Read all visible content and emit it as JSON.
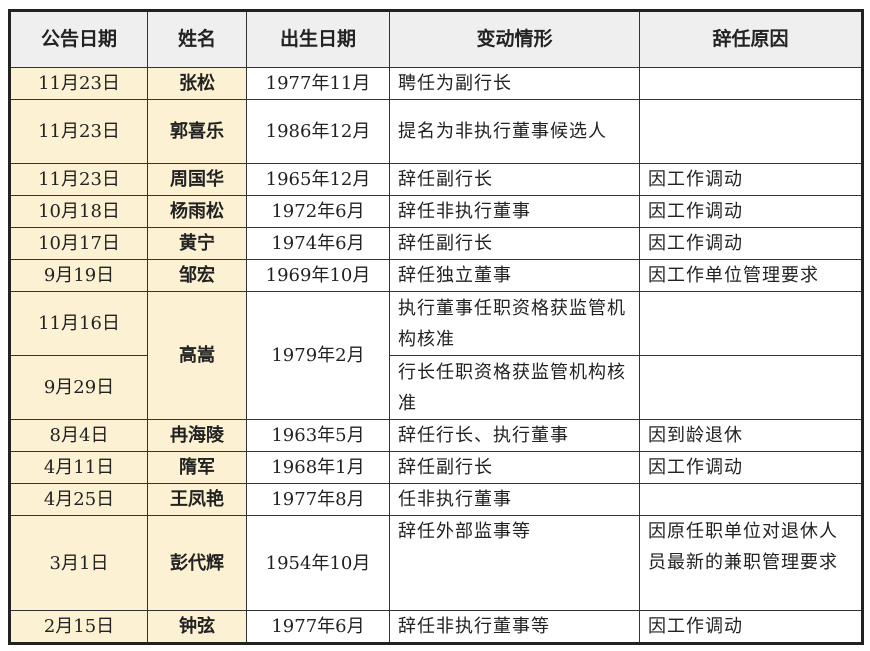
{
  "headers": [
    "公告日期",
    "姓名",
    "出生日期",
    "变动情形",
    "辞任原因"
  ],
  "rows": [
    {
      "date": "11月23日",
      "name": "张松",
      "birth": "1977年11月",
      "change": "聘任为副行长",
      "reason": ""
    },
    {
      "date": "11月23日",
      "name": "郭喜乐",
      "birth": "1986年12月",
      "change": "提名为非执行董事候选人",
      "reason": ""
    },
    {
      "date": "11月23日",
      "name": "周国华",
      "birth": "1965年12月",
      "change": "辞任副行长",
      "reason": "因工作调动"
    },
    {
      "date": "10月18日",
      "name": "杨雨松",
      "birth": "1972年6月",
      "change": "辞任非执行董事",
      "reason": "因工作调动"
    },
    {
      "date": "10月17日",
      "name": "黄宁",
      "birth": "1974年6月",
      "change": "辞任副行长",
      "reason": "因工作调动"
    },
    {
      "date": "9月19日",
      "name": "邹宏",
      "birth": "1969年10月",
      "change": "辞任独立董事",
      "reason": "因工作单位管理要求"
    },
    {
      "date": "11月16日",
      "name": "高嵩",
      "birth": "1979年2月",
      "change": "执行董事任职资格获监管机构核准",
      "reason": ""
    },
    {
      "date": "9月29日",
      "change": "行长任职资格获监管机构核准",
      "reason": ""
    },
    {
      "date": "8月4日",
      "name": "冉海陵",
      "birth": "1963年5月",
      "change": "辞任行长、执行董事",
      "reason": "因到龄退休"
    },
    {
      "date": "4月11日",
      "name": "隋军",
      "birth": "1968年1月",
      "change": "辞任副行长",
      "reason": "因工作调动"
    },
    {
      "date": "4月25日",
      "name": "王凤艳",
      "birth": "1977年8月",
      "change": "任非执行董事",
      "reason": ""
    },
    {
      "date": "3月1日",
      "name": "彭代辉",
      "birth": "1954年10月",
      "change": "辞任外部监事等",
      "reason": "因原任职单位对退休人员最新的兼职管理要求"
    },
    {
      "date": "2月15日",
      "name": "钟弦",
      "birth": "1977年6月",
      "change": "辞任非执行董事等",
      "reason": "因工作调动"
    }
  ]
}
